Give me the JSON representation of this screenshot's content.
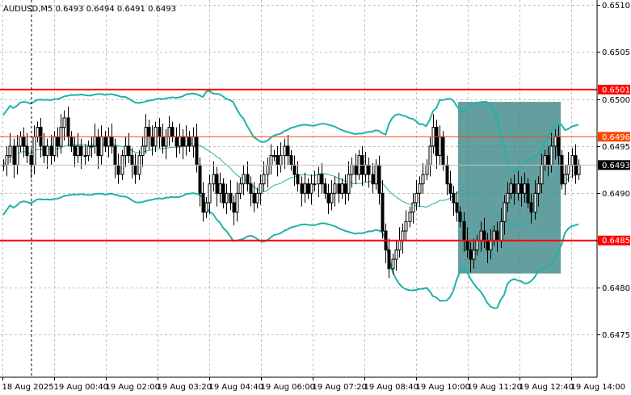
{
  "title": "AUDUSD,M5  0.6493 0.6494 0.6491 0.6493",
  "colors": {
    "background": "#ffffff",
    "grid": "#c0c0c0",
    "candle": "#000000",
    "bollinger": "#20b2aa",
    "resistance_line": "#ff0000",
    "pivot_line": "#ff4500",
    "highlight_box": "#2f7f7f",
    "current_price_label": "#000000"
  },
  "chart_data": {
    "type": "candlestick",
    "symbol": "AUDUSD",
    "timeframe": "M5",
    "ylim": [
      0.64705,
      0.65105
    ],
    "y_ticks": [
      "0.6510",
      "0.6505",
      "0.6500",
      "0.6495",
      "0.6490",
      "0.6485",
      "0.6480",
      "0.6475"
    ],
    "x_ticks": [
      "18 Aug 2025",
      "19 Aug 00:40",
      "19 Aug 02:00",
      "19 Aug 03:20",
      "19 Aug 04:40",
      "19 Aug 06:00",
      "19 Aug 07:20",
      "19 Aug 08:40",
      "19 Aug 10:00",
      "19 Aug 11:20",
      "19 Aug 12:40",
      "19 Aug 14:00"
    ],
    "grid": true,
    "horizontal_lines": [
      {
        "price": 0.6501,
        "label": "0.6501",
        "style": "thick",
        "color": "#ff0000"
      },
      {
        "price": 0.6496,
        "label": "0.6496",
        "style": "thin",
        "color": "#ff4500"
      },
      {
        "price": 0.6485,
        "label": "0.6485",
        "style": "thick",
        "color": "#ff0000"
      }
    ],
    "current_price": {
      "price": 0.6493,
      "label": "0.6493"
    },
    "highlight_box": {
      "x_start": 0.6452,
      "x_end": 0.6476,
      "from_price": 0.64997,
      "to_price": 0.64815
    },
    "candles_close": [
      0.6493,
      0.6494,
      0.6495,
      0.6493,
      0.6495,
      0.6496,
      0.6495,
      0.6494,
      0.6493,
      0.6496,
      0.6497,
      0.6495,
      0.6494,
      0.6495,
      0.6494,
      0.6496,
      0.6495,
      0.6497,
      0.6498,
      0.6496,
      0.6495,
      0.6494,
      0.6495,
      0.6494,
      0.6494,
      0.6495,
      0.6495,
      0.6496,
      0.6494,
      0.6496,
      0.6495,
      0.6496,
      0.6495,
      0.6493,
      0.6492,
      0.6494,
      0.6495,
      0.6494,
      0.6493,
      0.6492,
      0.6494,
      0.6495,
      0.6497,
      0.6496,
      0.6495,
      0.6497,
      0.6496,
      0.6495,
      0.6496,
      0.6497,
      0.6496,
      0.6495,
      0.6496,
      0.6495,
      0.6496,
      0.6495,
      0.6496,
      0.6493,
      0.649,
      0.6488,
      0.6489,
      0.6491,
      0.6492,
      0.649,
      0.6491,
      0.6489,
      0.649,
      0.6489,
      0.6488,
      0.649,
      0.6491,
      0.6492,
      0.6491,
      0.649,
      0.6489,
      0.649,
      0.6491,
      0.6492,
      0.6493,
      0.6494,
      0.6494,
      0.6493,
      0.6494,
      0.6495,
      0.6494,
      0.6493,
      0.6492,
      0.6491,
      0.649,
      0.6491,
      0.649,
      0.6491,
      0.6491,
      0.6492,
      0.6491,
      0.649,
      0.6489,
      0.649,
      0.6491,
      0.649,
      0.6491,
      0.649,
      0.6492,
      0.6493,
      0.6492,
      0.6494,
      0.6492,
      0.6493,
      0.6492,
      0.6491,
      0.6493,
      0.649,
      0.6486,
      0.6484,
      0.6482,
      0.6483,
      0.6484,
      0.6485,
      0.6486,
      0.6487,
      0.6488,
      0.6489,
      0.649,
      0.6491,
      0.6492,
      0.6493,
      0.6495,
      0.6497,
      0.6494,
      0.6496,
      0.6493,
      0.6491,
      0.649,
      0.6489,
      0.6488,
      0.6487,
      0.6485,
      0.6484,
      0.6483,
      0.6484,
      0.6485,
      0.6486,
      0.6485,
      0.6484,
      0.6485,
      0.6486,
      0.6485,
      0.6487,
      0.6489,
      0.649,
      0.6491,
      0.649,
      0.6491,
      0.649,
      0.6491,
      0.6489,
      0.6488,
      0.649,
      0.6491,
      0.6493,
      0.6494,
      0.6493,
      0.6495,
      0.6496,
      0.6494,
      0.6491,
      0.6492,
      0.6493,
      0.6494,
      0.6492,
      0.6493
    ]
  }
}
